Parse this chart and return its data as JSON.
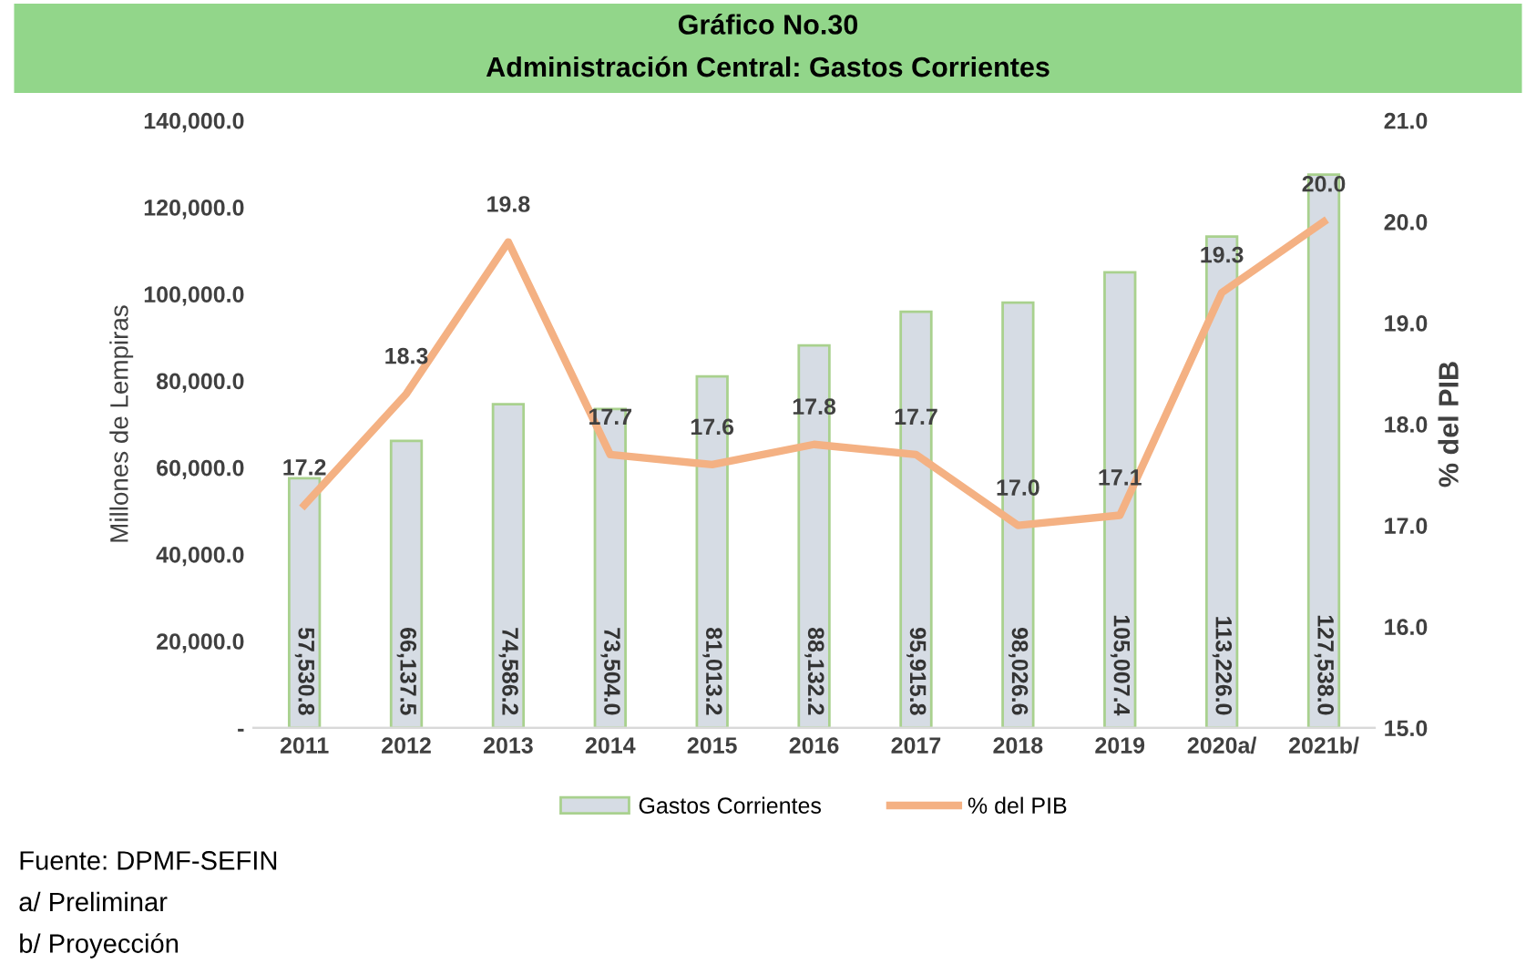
{
  "chart_data": {
    "type": "bar",
    "title": "Gráfico No.30",
    "subtitle": "Administración Central: Gastos Corrientes",
    "ylabel": "Millones de Lempiras",
    "y2label": "% del PIB",
    "categories": [
      "2011",
      "2012",
      "2013",
      "2014",
      "2015",
      "2016",
      "2017",
      "2018",
      "2019",
      "2020a/",
      "2021b/"
    ],
    "series": [
      {
        "name": "Gastos Corrientes",
        "color": "#d6dce4",
        "values": [
          57530.8,
          66137.5,
          74586.2,
          73504.0,
          81013.2,
          88132.2,
          95915.8,
          98026.6,
          105007.4,
          113226.0,
          127538.0
        ],
        "value_labels": [
          "57,530.8",
          "66,137.5",
          "74,586.2",
          "73,504.0",
          "81,013.2",
          "88,132.2",
          "95,915.8",
          "98,026.6",
          "105,007.4",
          "113,226.0",
          "127,538.0"
        ]
      },
      {
        "name": "% del PIB",
        "type": "line",
        "axis": "y2",
        "color": "#f4b183",
        "values": [
          17.2,
          18.3,
          19.8,
          17.7,
          17.6,
          17.8,
          17.7,
          17.0,
          17.1,
          19.3,
          20.0
        ],
        "value_labels": [
          "17.2",
          "18.3",
          "19.8",
          "17.7",
          "17.6",
          "17.8",
          "17.7",
          "17.0",
          "17.1",
          "19.3",
          "20.0"
        ]
      }
    ],
    "ylim": [
      0,
      140000
    ],
    "yticks": [
      {
        "value": 0,
        "label": "-"
      },
      {
        "value": 20000,
        "label": "20,000.0"
      },
      {
        "value": 40000,
        "label": "40,000.0"
      },
      {
        "value": 60000,
        "label": "60,000.0"
      },
      {
        "value": 80000,
        "label": "80,000.0"
      },
      {
        "value": 100000,
        "label": "100,000.0"
      },
      {
        "value": 120000,
        "label": "120,000.0"
      },
      {
        "value": 140000,
        "label": "140,000.0"
      }
    ],
    "y2lim": [
      15,
      21
    ],
    "y2ticks": [
      {
        "value": 15,
        "label": "15.0"
      },
      {
        "value": 16,
        "label": "16.0"
      },
      {
        "value": 17,
        "label": "17.0"
      },
      {
        "value": 18,
        "label": "18.0"
      },
      {
        "value": 19,
        "label": "19.0"
      },
      {
        "value": 20,
        "label": "20.0"
      },
      {
        "value": 21,
        "label": "21.0"
      }
    ],
    "grid": false,
    "legend": "bottom",
    "marker": "none",
    "annotations": [
      "Fuente: DPMF-SEFIN",
      "a/ Preliminar",
      "b/ Proyección"
    ]
  }
}
